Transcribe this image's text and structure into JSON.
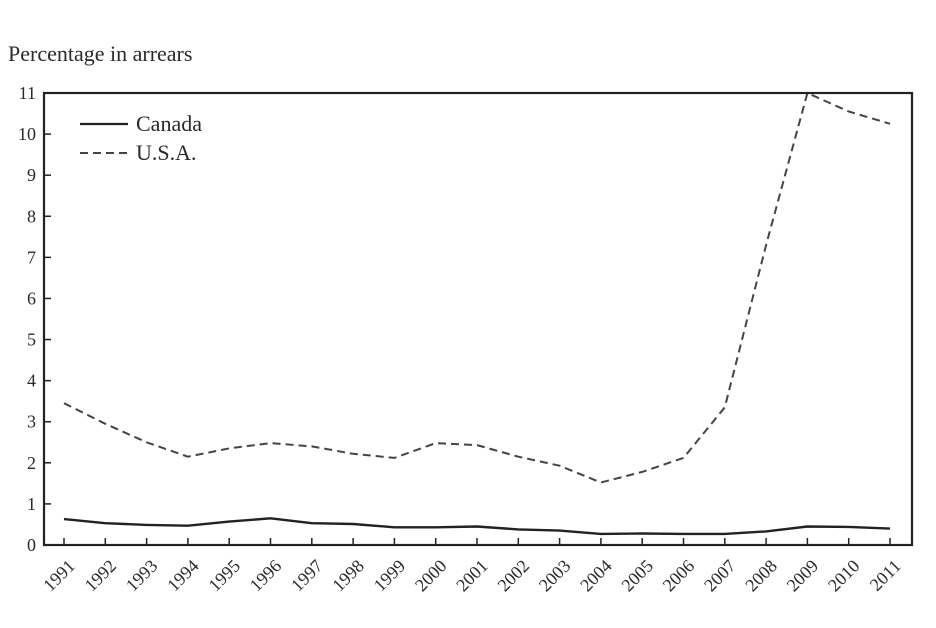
{
  "chart_data": {
    "type": "line",
    "ylabel": "Percentage in arrears",
    "xlabel": "",
    "ylim": [
      0,
      11
    ],
    "yticks": [
      0,
      1,
      2,
      3,
      4,
      5,
      6,
      7,
      8,
      9,
      10,
      11
    ],
    "categories": [
      "1991",
      "1992",
      "1993",
      "1994",
      "1995",
      "1996",
      "1997",
      "1998",
      "1999",
      "2000",
      "2001",
      "2002",
      "2003",
      "2004",
      "2005",
      "2006",
      "2007",
      "2008",
      "2009",
      "2010",
      "2011"
    ],
    "legend_position": "top-left",
    "grid": false,
    "series": [
      {
        "name": "Canada",
        "style": "solid",
        "color": "#222222",
        "values": [
          0.63,
          0.53,
          0.49,
          0.47,
          0.57,
          0.65,
          0.53,
          0.51,
          0.43,
          0.43,
          0.45,
          0.38,
          0.35,
          0.27,
          0.28,
          0.27,
          0.27,
          0.33,
          0.45,
          0.44,
          0.4
        ]
      },
      {
        "name": "U.S.A.",
        "style": "dashed",
        "color": "#444444",
        "values": [
          3.45,
          2.95,
          2.5,
          2.15,
          2.35,
          2.48,
          2.4,
          2.22,
          2.12,
          2.48,
          2.43,
          2.15,
          1.93,
          1.52,
          1.78,
          2.12,
          3.35,
          7.3,
          11.0,
          10.55,
          10.25
        ]
      }
    ]
  }
}
